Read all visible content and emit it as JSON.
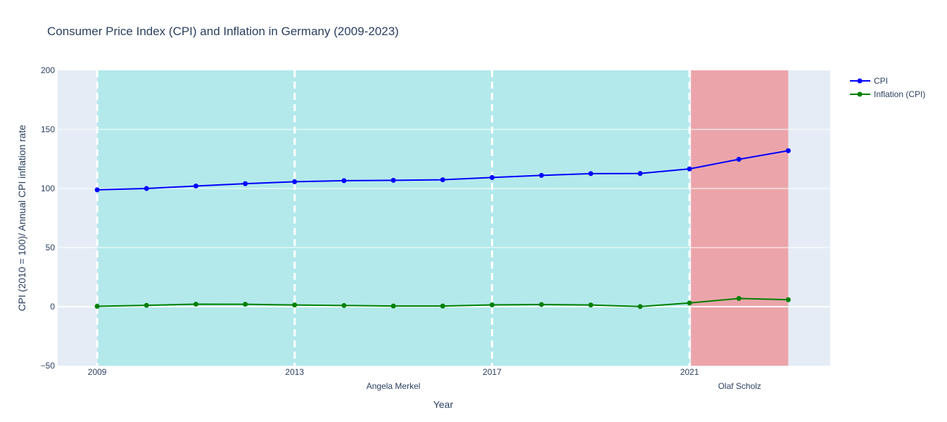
{
  "chart_data": {
    "type": "line",
    "title": "Consumer Price Index (CPI) and Inflation in Germany (2009-2023)",
    "xlabel": "Year",
    "ylabel": "CPI (2010 = 100)/ Annual CPI inflation rate",
    "xlim": [
      2008.2,
      2023.85
    ],
    "ylim": [
      -50,
      200
    ],
    "x_ticks": [
      2009,
      2013,
      2017,
      2021
    ],
    "y_ticks": [
      -50,
      0,
      50,
      100,
      150,
      200
    ],
    "x": [
      2009,
      2010,
      2011,
      2012,
      2013,
      2014,
      2015,
      2016,
      2017,
      2018,
      2019,
      2020,
      2021,
      2022,
      2023
    ],
    "series": [
      {
        "name": "CPI",
        "color": "#0000ff",
        "values": [
          98.9,
          100.0,
          102.1,
          104.1,
          105.7,
          106.6,
          106.9,
          107.4,
          109.3,
          111.1,
          112.6,
          112.7,
          116.6,
          124.7,
          132.0
        ]
      },
      {
        "name": "Inflation (CPI)",
        "color": "#008000",
        "values": [
          0.3,
          1.1,
          2.1,
          2.0,
          1.4,
          1.0,
          0.5,
          0.5,
          1.5,
          1.8,
          1.4,
          0.1,
          3.1,
          6.9,
          5.9
        ]
      }
    ],
    "periods": [
      {
        "label": "Angela Merkel",
        "start": 2009,
        "end": 2021,
        "color": "#b3e9eb"
      },
      {
        "label": "Olaf Scholz",
        "start": 2021.03,
        "end": 2023,
        "color": "#eba5aa"
      }
    ],
    "vlines": [
      2009,
      2013,
      2017,
      2021
    ],
    "grid": true,
    "legend_position": "top-right",
    "plot_bg": "#e5ecf6"
  }
}
